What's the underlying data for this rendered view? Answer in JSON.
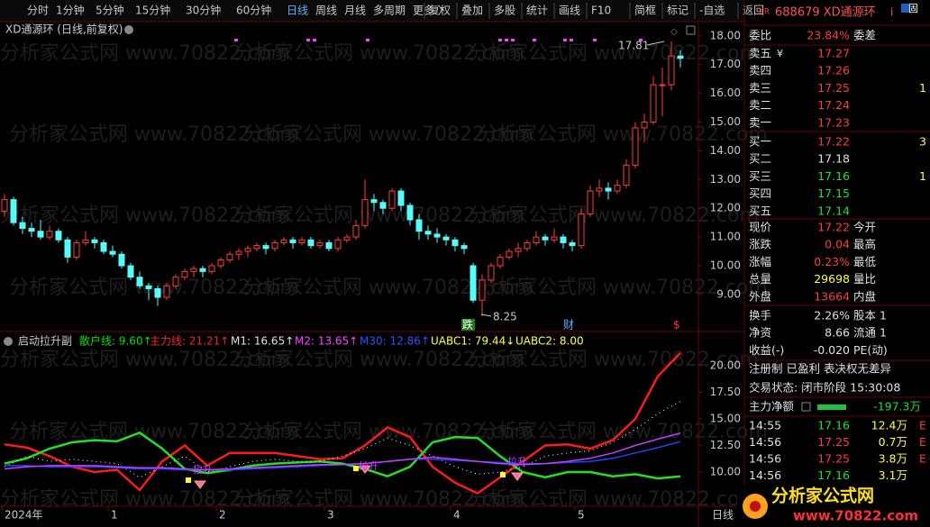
{
  "toolbar": {
    "periods": [
      "分时",
      "1分钟",
      "5分钟",
      "15分钟",
      "30分钟",
      "60分钟",
      "日线",
      "周线",
      "月线",
      "多周期",
      "更多 〉"
    ],
    "active": 6,
    "tools": [
      "复权",
      "叠加",
      "多股",
      "统计",
      "画线",
      "F10",
      "简框",
      "标记",
      "-自选",
      "返回"
    ]
  },
  "main": {
    "title": "XD通源环 (日线,前复权)",
    "ylim": [
      7.71,
      18.56
    ],
    "yticks": [
      {
        "value": 18,
        "label": "18.00"
      },
      {
        "value": 17,
        "label": "17.00"
      },
      {
        "value": 16,
        "label": "16.00"
      },
      {
        "value": 15,
        "label": "15.00"
      },
      {
        "value": 14,
        "label": "14.00"
      },
      {
        "value": 13,
        "label": "13.00"
      },
      {
        "value": 12,
        "label": "12.00"
      },
      {
        "value": 11,
        "label": "11.00"
      },
      {
        "value": 10,
        "label": "10.00"
      },
      {
        "value": 9,
        "label": "9.00"
      }
    ],
    "up_color": "#ff3c3c",
    "down_color": "#54fcfc",
    "candles": [
      [
        11.9,
        12.5,
        11.7,
        12.3
      ],
      [
        12.3,
        12.4,
        11.4,
        11.5
      ],
      [
        11.5,
        11.7,
        11.1,
        11.3
      ],
      [
        11.3,
        11.5,
        11.0,
        11.2
      ],
      [
        11.2,
        11.6,
        10.9,
        11.0
      ],
      [
        11.0,
        11.4,
        10.9,
        11.2
      ],
      [
        11.2,
        11.3,
        10.8,
        10.9
      ],
      [
        10.9,
        11.0,
        10.1,
        10.3
      ],
      [
        10.3,
        10.9,
        10.2,
        10.8
      ],
      [
        10.8,
        11.2,
        10.7,
        10.9
      ],
      [
        10.9,
        11.0,
        10.6,
        10.8
      ],
      [
        10.8,
        10.9,
        10.4,
        10.5
      ],
      [
        10.5,
        10.7,
        10.3,
        10.4
      ],
      [
        10.4,
        10.5,
        9.9,
        10.0
      ],
      [
        10.0,
        10.1,
        9.5,
        9.6
      ],
      [
        9.6,
        9.8,
        9.2,
        9.3
      ],
      [
        9.3,
        9.4,
        8.8,
        9.2
      ],
      [
        9.2,
        9.3,
        8.6,
        8.9
      ],
      [
        8.9,
        9.4,
        8.8,
        9.3
      ],
      [
        9.3,
        9.7,
        9.2,
        9.6
      ],
      [
        9.6,
        9.9,
        9.5,
        9.8
      ],
      [
        9.8,
        10.0,
        9.6,
        9.9
      ],
      [
        9.9,
        10.0,
        9.6,
        9.8
      ],
      [
        9.8,
        10.1,
        9.7,
        10.0
      ],
      [
        10.0,
        10.3,
        9.9,
        10.2
      ],
      [
        10.2,
        10.5,
        10.1,
        10.4
      ],
      [
        10.4,
        10.6,
        10.2,
        10.5
      ],
      [
        10.5,
        10.7,
        10.3,
        10.6
      ],
      [
        10.6,
        10.8,
        10.5,
        10.7
      ],
      [
        10.7,
        10.8,
        10.4,
        10.6
      ],
      [
        10.6,
        10.9,
        10.5,
        10.8
      ],
      [
        10.8,
        11.0,
        10.7,
        10.9
      ],
      [
        10.9,
        11.0,
        10.6,
        10.8
      ],
      [
        10.8,
        11.0,
        10.7,
        10.9
      ],
      [
        10.9,
        11.0,
        10.6,
        10.7
      ],
      [
        10.7,
        10.9,
        10.6,
        10.8
      ],
      [
        10.8,
        10.9,
        10.5,
        10.6
      ],
      [
        10.6,
        11.0,
        10.5,
        10.9
      ],
      [
        10.9,
        11.1,
        10.8,
        11.0
      ],
      [
        11.0,
        11.6,
        10.9,
        11.4
      ],
      [
        11.4,
        13.0,
        11.3,
        12.3
      ],
      [
        12.3,
        12.5,
        11.9,
        12.2
      ],
      [
        12.2,
        12.3,
        11.8,
        12.0
      ],
      [
        12.0,
        12.7,
        11.9,
        12.6
      ],
      [
        12.6,
        12.7,
        11.9,
        12.1
      ],
      [
        12.1,
        12.2,
        11.4,
        11.6
      ],
      [
        11.6,
        11.8,
        10.9,
        11.2
      ],
      [
        11.2,
        11.4,
        10.9,
        11.1
      ],
      [
        11.1,
        11.3,
        10.8,
        11.0
      ],
      [
        11.0,
        11.1,
        10.7,
        10.9
      ],
      [
        10.9,
        11.0,
        10.5,
        10.7
      ],
      [
        10.7,
        10.8,
        10.4,
        10.6
      ],
      [
        10.0,
        10.1,
        8.7,
        8.8
      ],
      [
        8.8,
        9.7,
        8.25,
        9.5
      ],
      [
        9.5,
        10.1,
        9.4,
        10.0
      ],
      [
        10.0,
        10.4,
        9.9,
        10.3
      ],
      [
        10.3,
        10.6,
        10.2,
        10.5
      ],
      [
        10.5,
        10.8,
        10.3,
        10.6
      ],
      [
        10.6,
        10.9,
        10.5,
        10.8
      ],
      [
        10.8,
        11.2,
        10.7,
        11.0
      ],
      [
        11.0,
        11.1,
        10.7,
        10.9
      ],
      [
        10.9,
        11.3,
        10.8,
        11.0
      ],
      [
        11.0,
        11.1,
        10.6,
        10.8
      ],
      [
        10.8,
        10.9,
        10.5,
        10.7
      ],
      [
        10.7,
        12.0,
        10.6,
        11.8
      ],
      [
        11.8,
        12.8,
        11.7,
        12.6
      ],
      [
        12.6,
        13.0,
        12.4,
        12.7
      ],
      [
        12.7,
        12.9,
        12.3,
        12.6
      ],
      [
        12.6,
        13.0,
        12.5,
        12.8
      ],
      [
        12.8,
        13.7,
        12.7,
        13.5
      ],
      [
        13.5,
        15.0,
        13.4,
        14.8
      ],
      [
        14.8,
        15.3,
        14.3,
        15.0
      ],
      [
        15.0,
        16.6,
        14.9,
        16.3
      ],
      [
        16.3,
        16.9,
        15.2,
        16.3
      ],
      [
        16.3,
        17.81,
        16.1,
        17.3
      ],
      [
        17.3,
        17.5,
        16.9,
        17.22
      ]
    ],
    "high_label": "17.81",
    "low_label": "8.25",
    "markers": [
      "跌",
      "财",
      "$"
    ]
  },
  "indicator": {
    "title": "启动拉升副",
    "ylim": [
      6.78,
      23.05
    ],
    "yticks": [
      {
        "value": 20,
        "label": "20.00"
      },
      {
        "value": 17.5,
        "label": "17.50"
      },
      {
        "value": 15,
        "label": "15.00"
      },
      {
        "value": 12.5,
        "label": "12.50"
      },
      {
        "value": 10,
        "label": "10.00"
      }
    ],
    "legend": [
      {
        "text": "散户线: 9.60↑",
        "color": "#00e000"
      },
      {
        "text": "主力线: 21.21↑",
        "color": "#ff2020"
      },
      {
        "text": "M1: 16.65↑",
        "color": "#e0e0e0"
      },
      {
        "text": "M2: 13.65↑",
        "color": "#ff40ff"
      },
      {
        "text": "M30: 12.86↑",
        "color": "#3050ff"
      },
      {
        "text": "UABC1: 79.44↓",
        "color": "#ffff40"
      },
      {
        "text": "UABC2: 8.00",
        "color": "#ffff40"
      }
    ],
    "series": [
      {
        "name": "主力线",
        "color": "#ff1a1a",
        "width": 2.5,
        "values": [
          12.6,
          12.3,
          11.5,
          10.5,
          10.0,
          10.2,
          8.3,
          11.0,
          12.5,
          10.6,
          11.8,
          11.8,
          11.8,
          11.5,
          11.2,
          11.3,
          12.5,
          14.2,
          13.3,
          10.5,
          9.0,
          8.0,
          9.5,
          11.0,
          12.5,
          12.6,
          12.2,
          13.0,
          15.0,
          19.0,
          21.21
        ]
      },
      {
        "name": "散户线",
        "color": "#22e022",
        "width": 2.5,
        "values": [
          10.8,
          11.3,
          12.2,
          12.8,
          13.0,
          12.9,
          13.7,
          12.2,
          10.3,
          9.9,
          10.2,
          10.6,
          10.8,
          10.9,
          11.0,
          10.8,
          10.3,
          9.6,
          10.5,
          12.8,
          13.3,
          13.2,
          11.5,
          10.0,
          9.5,
          10.0,
          10.0,
          9.6,
          9.8,
          9.4,
          9.6
        ]
      },
      {
        "name": "M1",
        "color": "#e0e0e0",
        "width": 1.2,
        "dotted": true,
        "values": [
          10.5,
          11.5,
          11.0,
          11.2,
          11.0,
          10.8,
          9.5,
          10.5,
          11.5,
          10.0,
          10.5,
          11.0,
          11.2,
          11.0,
          11.0,
          11.5,
          12.2,
          13.2,
          12.5,
          11.5,
          10.5,
          9.8,
          10.0,
          10.5,
          11.5,
          11.8,
          12.0,
          12.8,
          14.0,
          15.5,
          16.65
        ]
      },
      {
        "name": "M30",
        "color": "#2040ff",
        "width": 1.5,
        "values": [
          10.6,
          10.6,
          10.5,
          10.5,
          10.5,
          10.4,
          10.3,
          10.3,
          10.2,
          10.2,
          10.2,
          10.3,
          10.4,
          10.5,
          10.6,
          10.7,
          10.8,
          11.0,
          11.2,
          11.2,
          11.1,
          11.0,
          10.9,
          10.8,
          10.8,
          10.9,
          11.0,
          11.3,
          11.8,
          12.3,
          12.86
        ]
      },
      {
        "name": "M2",
        "color": "#c040ff",
        "width": 1.5,
        "values": [
          10.3,
          10.5,
          10.6,
          10.6,
          10.6,
          10.5,
          10.4,
          10.4,
          10.3,
          10.2,
          10.3,
          10.4,
          10.5,
          10.6,
          10.7,
          10.7,
          10.8,
          11.0,
          11.2,
          11.4,
          11.2,
          11.0,
          10.8,
          10.7,
          10.8,
          11.0,
          11.3,
          11.8,
          12.5,
          13.1,
          13.65
        ]
      }
    ],
    "signals": [
      "拉升",
      "拉升",
      "拉升"
    ]
  },
  "xaxis": {
    "labels": [
      "2024年",
      "1",
      "2",
      "3",
      "4",
      "5"
    ],
    "period": "日线"
  },
  "quote": {
    "market": "KR",
    "name": "688679 XD通源环",
    "info": "i",
    "badge": "固",
    "ratio": {
      "label": "委比",
      "value": "23.84%",
      "label2": "委差"
    },
    "book": [
      {
        "label": "卖五",
        "tag": "¥",
        "value": "17.27",
        "color": "#ff3c3c",
        "extra": ""
      },
      {
        "label": "卖四",
        "tag": "",
        "value": "17.26",
        "color": "#ff3c3c",
        "extra": ""
      },
      {
        "label": "卖三",
        "tag": "",
        "value": "17.25",
        "color": "#ff3c3c",
        "extra": "1"
      },
      {
        "label": "卖二",
        "tag": "",
        "value": "17.24",
        "color": "#ff3c3c",
        "extra": ""
      },
      {
        "label": "卖一",
        "tag": "",
        "value": "17.23",
        "color": "#ff3c3c",
        "extra": ""
      },
      {
        "label": "买一",
        "tag": "",
        "value": "17.22",
        "color": "#ff3c3c",
        "extra": "3"
      },
      {
        "label": "买二",
        "tag": "",
        "value": "17.18",
        "color": "#e0e0e0",
        "extra": ""
      },
      {
        "label": "买三",
        "tag": "",
        "value": "17.16",
        "color": "#20e020",
        "extra": "1"
      },
      {
        "label": "买四",
        "tag": "",
        "value": "17.15",
        "color": "#20e020",
        "extra": ""
      },
      {
        "label": "买五",
        "tag": "",
        "value": "17.14",
        "color": "#20e020",
        "extra": ""
      }
    ],
    "stats": [
      {
        "label": "现价",
        "value": "17.22",
        "color": "#ff3c3c",
        "label2": "今开"
      },
      {
        "label": "涨跌",
        "value": "0.04",
        "color": "#ff3c3c",
        "label2": "最高"
      },
      {
        "label": "涨幅",
        "value": "0.23%",
        "color": "#ff3c3c",
        "label2": "最低"
      },
      {
        "label": "总量",
        "value": "29698",
        "color": "#ffff40",
        "label2": "量比"
      },
      {
        "label": "外盘",
        "value": "13664",
        "color": "#ff3c3c",
        "label2": "内盘"
      },
      {
        "label": "换手",
        "value": "2.26%",
        "color": "#e0e0e0",
        "label2": "股本 1"
      },
      {
        "label": "净资",
        "value": "8.66",
        "color": "#e0e0e0",
        "label2": "流通 1"
      },
      {
        "label": "收益(-)",
        "value": "-0.020",
        "color": "#e0e0e0",
        "label2": "PE(动)"
      }
    ],
    "tags": "注册制 已盈利 表决权无差异",
    "status": "交易状态: 闭市阶段 15:30:08",
    "flow": {
      "label": "主力净额",
      "value": "-197.3万"
    },
    "trades": [
      {
        "time": "14:55",
        "price": "17.16",
        "color": "#20e020",
        "vol": "12.4万",
        "flag": "E"
      },
      {
        "time": "14:56",
        "price": "17.25",
        "color": "#ff3c3c",
        "vol": "0.7万",
        "flag": "E"
      },
      {
        "time": "14:56",
        "price": "17.25",
        "color": "#ff3c3c",
        "vol": "3.8万",
        "flag": "E"
      },
      {
        "time": "14:56",
        "price": "17.16",
        "color": "#20e020",
        "vol": "3.1万",
        "flag": ""
      }
    ]
  },
  "watermark": "分析家公式网 www.70822.com",
  "logo": {
    "name": "分析家公式网",
    "url": "www.70822.com"
  }
}
